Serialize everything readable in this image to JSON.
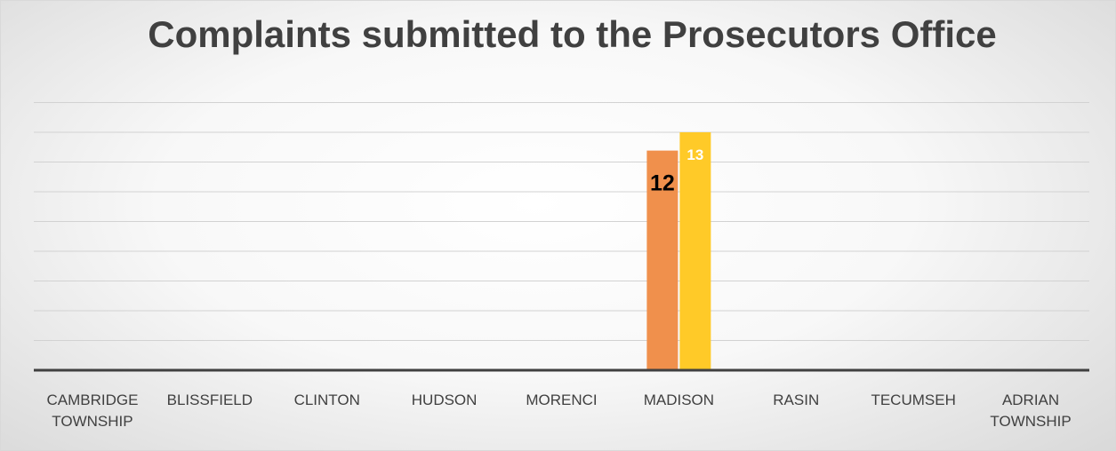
{
  "chart_data": {
    "type": "bar",
    "title": "Complaints submitted to the Prosecutors Office",
    "categories": [
      [
        "CAMBRIDGE",
        "TOWNSHIP"
      ],
      [
        "BLISSFIELD"
      ],
      [
        "CLINTON"
      ],
      [
        "HUDSON"
      ],
      [
        "MORENCI"
      ],
      [
        "MADISON"
      ],
      [
        "RASIN"
      ],
      [
        "TECUMSEH"
      ],
      [
        "ADRIAN",
        "TOWNSHIP"
      ]
    ],
    "series": [
      {
        "color": "#f0904c",
        "values": [
          null,
          null,
          null,
          null,
          null,
          12,
          null,
          null,
          null
        ],
        "data_label_color": "#000000",
        "data_label_size": "large"
      },
      {
        "color": "#ffca28",
        "values": [
          null,
          null,
          null,
          null,
          null,
          13,
          null,
          null,
          null
        ],
        "data_label_color": "#ffffff",
        "data_label_size": "small"
      }
    ],
    "gridlines": 9,
    "ylim": [
      0,
      13
    ],
    "grid": true,
    "legend": "none"
  }
}
